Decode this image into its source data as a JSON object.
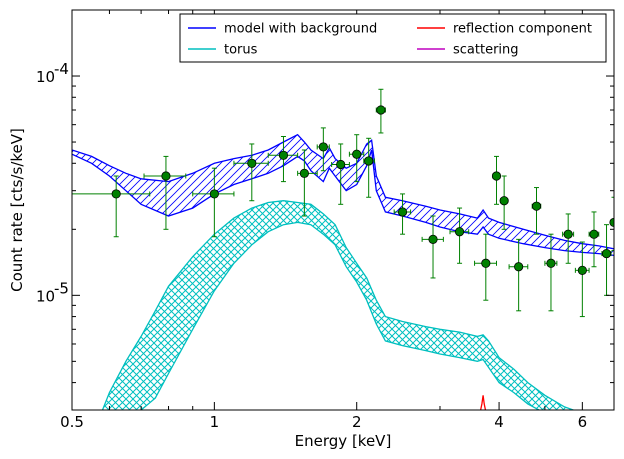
{
  "chart_data": {
    "type": "line",
    "title": "",
    "xlabel": "Energy [keV]",
    "ylabel": "Count rate [cts/s/keV]",
    "x_scale": "log",
    "y_scale": "log",
    "xlim": [
      0.5,
      7.0
    ],
    "ylim": [
      3e-06,
      0.0002
    ],
    "x_ticks": [
      {
        "value": 0.5,
        "label": "0.5"
      },
      {
        "value": 1,
        "label": "1"
      },
      {
        "value": 2,
        "label": "2"
      },
      {
        "value": 4,
        "label": "4"
      },
      {
        "value": 6,
        "label": "6"
      }
    ],
    "y_ticks": [
      {
        "value": 1e-05,
        "label": "10",
        "exp": "-5"
      },
      {
        "value": 0.0001,
        "label": "10",
        "exp": "-4"
      }
    ],
    "legend": {
      "placement": "top-right",
      "columns": 2,
      "entries": [
        {
          "label": "model with background",
          "color": "#0000ff"
        },
        {
          "label": "reflection component",
          "color": "#ff0000"
        },
        {
          "label": "torus",
          "color": "#00bfbf"
        },
        {
          "label": "scattering",
          "color": "#bf00bf"
        }
      ]
    },
    "series": [
      {
        "name": "model with background",
        "color": "#0000ff",
        "style": "band",
        "x": [
          0.5,
          0.55,
          0.6,
          0.65,
          0.7,
          0.8,
          0.9,
          1.0,
          1.1,
          1.2,
          1.3,
          1.4,
          1.5,
          1.55,
          1.6,
          1.7,
          1.75,
          1.8,
          1.9,
          2.0,
          2.1,
          2.15,
          2.2,
          2.3,
          2.5,
          2.8,
          3.0,
          3.3,
          3.6,
          3.7,
          3.8,
          4.0,
          4.5,
          5.0,
          5.5,
          6.0,
          6.5,
          7.0
        ],
        "upper": [
          4.6e-05,
          4.3e-05,
          3.9e-05,
          3.6e-05,
          3.4e-05,
          3.3e-05,
          3.6e-05,
          4e-05,
          4.2e-05,
          4.35e-05,
          4.6e-05,
          5e-05,
          5.4e-05,
          5e-05,
          4.6e-05,
          4.2e-05,
          4.7e-05,
          4.2e-05,
          3.8e-05,
          4e-05,
          4.9e-05,
          5.1e-05,
          3.5e-05,
          2.8e-05,
          2.7e-05,
          2.55e-05,
          2.45e-05,
          2.35e-05,
          2.25e-05,
          2.45e-05,
          2.25e-05,
          2.15e-05,
          2e-05,
          1.88e-05,
          1.78e-05,
          1.72e-05,
          1.68e-05,
          1.63e-05
        ],
        "lower": [
          4.4e-05,
          4e-05,
          3.5e-05,
          3e-05,
          2.6e-05,
          2.3e-05,
          2.5e-05,
          2.9e-05,
          3.2e-05,
          3.4e-05,
          3.6e-05,
          3.9e-05,
          4.3e-05,
          4.1e-05,
          3.7e-05,
          3.3e-05,
          3.8e-05,
          3.5e-05,
          3e-05,
          3.2e-05,
          3.9e-05,
          4.6e-05,
          3e-05,
          2.4e-05,
          2.3e-05,
          2.15e-05,
          2.05e-05,
          1.95e-05,
          1.9e-05,
          2.05e-05,
          1.9e-05,
          1.82e-05,
          1.72e-05,
          1.65e-05,
          1.6e-05,
          1.57e-05,
          1.55e-05,
          1.52e-05
        ]
      },
      {
        "name": "torus",
        "color": "#00bfbf",
        "style": "hatched-band",
        "x": [
          0.58,
          0.6,
          0.65,
          0.7,
          0.75,
          0.8,
          0.9,
          1.0,
          1.1,
          1.2,
          1.3,
          1.4,
          1.5,
          1.6,
          1.7,
          1.8,
          1.9,
          2.0,
          2.1,
          2.2,
          2.3,
          2.5,
          2.8,
          3.0,
          3.3,
          3.6,
          3.7,
          3.8,
          4.0,
          4.3,
          4.6,
          5.0,
          5.5,
          6.0
        ],
        "upper": [
          3e-06,
          3.6e-06,
          5e-06,
          6.5e-06,
          8.5e-06,
          1.1e-05,
          1.5e-05,
          1.9e-05,
          2.25e-05,
          2.5e-05,
          2.65e-05,
          2.7e-05,
          2.65e-05,
          2.6e-05,
          2.35e-05,
          2.1e-05,
          1.65e-05,
          1.4e-05,
          1.2e-05,
          9.5e-06,
          8e-06,
          7.6e-06,
          7.2e-06,
          7e-06,
          6.8e-06,
          6.5e-06,
          6.6e-06,
          6.2e-06,
          5.2e-06,
          4.6e-06,
          4e-06,
          3.5e-06,
          3.1e-06,
          2.9e-06
        ],
        "lower": [
          null,
          null,
          null,
          3e-06,
          3.4e-06,
          4.4e-06,
          7e-06,
          1.05e-05,
          1.4e-05,
          1.7e-05,
          1.95e-05,
          2.1e-05,
          2.15e-05,
          2.1e-05,
          1.9e-05,
          1.7e-05,
          1.35e-05,
          1.15e-05,
          9.5e-06,
          7.4e-06,
          6.2e-06,
          5.9e-06,
          5.6e-06,
          5.4e-06,
          5.2e-06,
          5e-06,
          5.1e-06,
          4.7e-06,
          4e-06,
          3.6e-06,
          3.2e-06,
          2.9e-06,
          2.7e-06,
          2.5e-06
        ]
      },
      {
        "name": "reflection component",
        "color": "#ff0000",
        "style": "line",
        "x": [
          3.6,
          3.65,
          3.68,
          3.7,
          3.72,
          3.75,
          3.8
        ],
        "y": [
          2.9e-06,
          2.95e-06,
          3.2e-06,
          3.5e-06,
          3.2e-06,
          2.95e-06,
          2.9e-06
        ]
      },
      {
        "name": "scattering",
        "color": "#bf00bf",
        "style": "line",
        "x": [],
        "y": []
      },
      {
        "name": "data",
        "color": "#008000",
        "style": "errorbar",
        "points": [
          {
            "x": 0.62,
            "y": 2.9e-05,
            "xlo": 0.5,
            "xhi": 0.73,
            "ylo": 1.85e-05,
            "yhi": 3.5e-05
          },
          {
            "x": 0.79,
            "y": 3.5e-05,
            "xlo": 0.71,
            "xhi": 0.87,
            "ylo": 2e-05,
            "yhi": 4.3e-05
          },
          {
            "x": 1.0,
            "y": 2.9e-05,
            "xlo": 0.9,
            "xhi": 1.1,
            "ylo": 1.85e-05,
            "yhi": 3.8e-05
          },
          {
            "x": 1.2,
            "y": 4e-05,
            "xlo": 1.1,
            "xhi": 1.3,
            "ylo": 2.7e-05,
            "yhi": 4.9e-05
          },
          {
            "x": 1.4,
            "y": 4.35e-05,
            "xlo": 1.3,
            "xhi": 1.5,
            "ylo": 3.3e-05,
            "yhi": 5.3e-05
          },
          {
            "x": 1.55,
            "y": 3.6e-05,
            "xlo": 1.5,
            "xhi": 1.65,
            "ylo": 2.3e-05,
            "yhi": 4.6e-05
          },
          {
            "x": 1.7,
            "y": 4.75e-05,
            "xlo": 1.65,
            "xhi": 1.75,
            "ylo": 3.7e-05,
            "yhi": 5.8e-05
          },
          {
            "x": 1.85,
            "y": 3.95e-05,
            "xlo": 1.77,
            "xhi": 1.93,
            "ylo": 2.6e-05,
            "yhi": 4.9e-05
          },
          {
            "x": 2.0,
            "y": 4.4e-05,
            "xlo": 1.93,
            "xhi": 2.07,
            "ylo": 3.3e-05,
            "yhi": 5.4e-05
          },
          {
            "x": 2.12,
            "y": 4.1e-05,
            "xlo": 2.07,
            "xhi": 2.18,
            "ylo": 2.8e-05,
            "yhi": 5.2e-05
          },
          {
            "x": 2.25,
            "y": 7e-05,
            "xlo": 2.2,
            "xhi": 2.3,
            "ylo": 5.5e-05,
            "yhi": 8.7e-05
          },
          {
            "x": 2.5,
            "y": 2.4e-05,
            "xlo": 2.4,
            "xhi": 2.6,
            "ylo": 1.9e-05,
            "yhi": 2.9e-05
          },
          {
            "x": 2.9,
            "y": 1.8e-05,
            "xlo": 2.75,
            "xhi": 3.05,
            "ylo": 1.2e-05,
            "yhi": 2.3e-05
          },
          {
            "x": 3.3,
            "y": 1.95e-05,
            "xlo": 3.15,
            "xhi": 3.45,
            "ylo": 1.4e-05,
            "yhi": 2.5e-05
          },
          {
            "x": 3.75,
            "y": 1.4e-05,
            "xlo": 3.55,
            "xhi": 3.95,
            "ylo": 9.5e-06,
            "yhi": 1.9e-05
          },
          {
            "x": 3.95,
            "y": 3.5e-05,
            "xlo": 3.88,
            "xhi": 4.02,
            "ylo": 2.6e-05,
            "yhi": 4.3e-05
          },
          {
            "x": 4.1,
            "y": 2.7e-05,
            "xlo": 4.03,
            "xhi": 4.17,
            "ylo": 2e-05,
            "yhi": 3.5e-05
          },
          {
            "x": 4.4,
            "y": 1.35e-05,
            "xlo": 4.2,
            "xhi": 4.6,
            "ylo": 8.5e-06,
            "yhi": 1.8e-05
          },
          {
            "x": 4.8,
            "y": 2.55e-05,
            "xlo": 4.7,
            "xhi": 4.9,
            "ylo": 1.9e-05,
            "yhi": 3.1e-05
          },
          {
            "x": 5.15,
            "y": 1.4e-05,
            "xlo": 5.0,
            "xhi": 5.3,
            "ylo": 8.5e-06,
            "yhi": 1.9e-05
          },
          {
            "x": 5.6,
            "y": 1.9e-05,
            "xlo": 5.45,
            "xhi": 5.75,
            "ylo": 1.4e-05,
            "yhi": 2.35e-05
          },
          {
            "x": 6.0,
            "y": 1.3e-05,
            "xlo": 5.8,
            "xhi": 6.2,
            "ylo": 8e-06,
            "yhi": 1.75e-05
          },
          {
            "x": 6.35,
            "y": 1.9e-05,
            "xlo": 6.2,
            "xhi": 6.5,
            "ylo": 1.35e-05,
            "yhi": 2.4e-05
          },
          {
            "x": 6.75,
            "y": 1.55e-05,
            "xlo": 6.6,
            "xhi": 6.9,
            "ylo": 1e-05,
            "yhi": 2.1e-05
          },
          {
            "x": 7.0,
            "y": 2.15e-05,
            "xlo": 6.9,
            "xhi": 7.1,
            "ylo": 1.6e-05,
            "yhi": 2.8e-05
          }
        ]
      }
    ]
  }
}
